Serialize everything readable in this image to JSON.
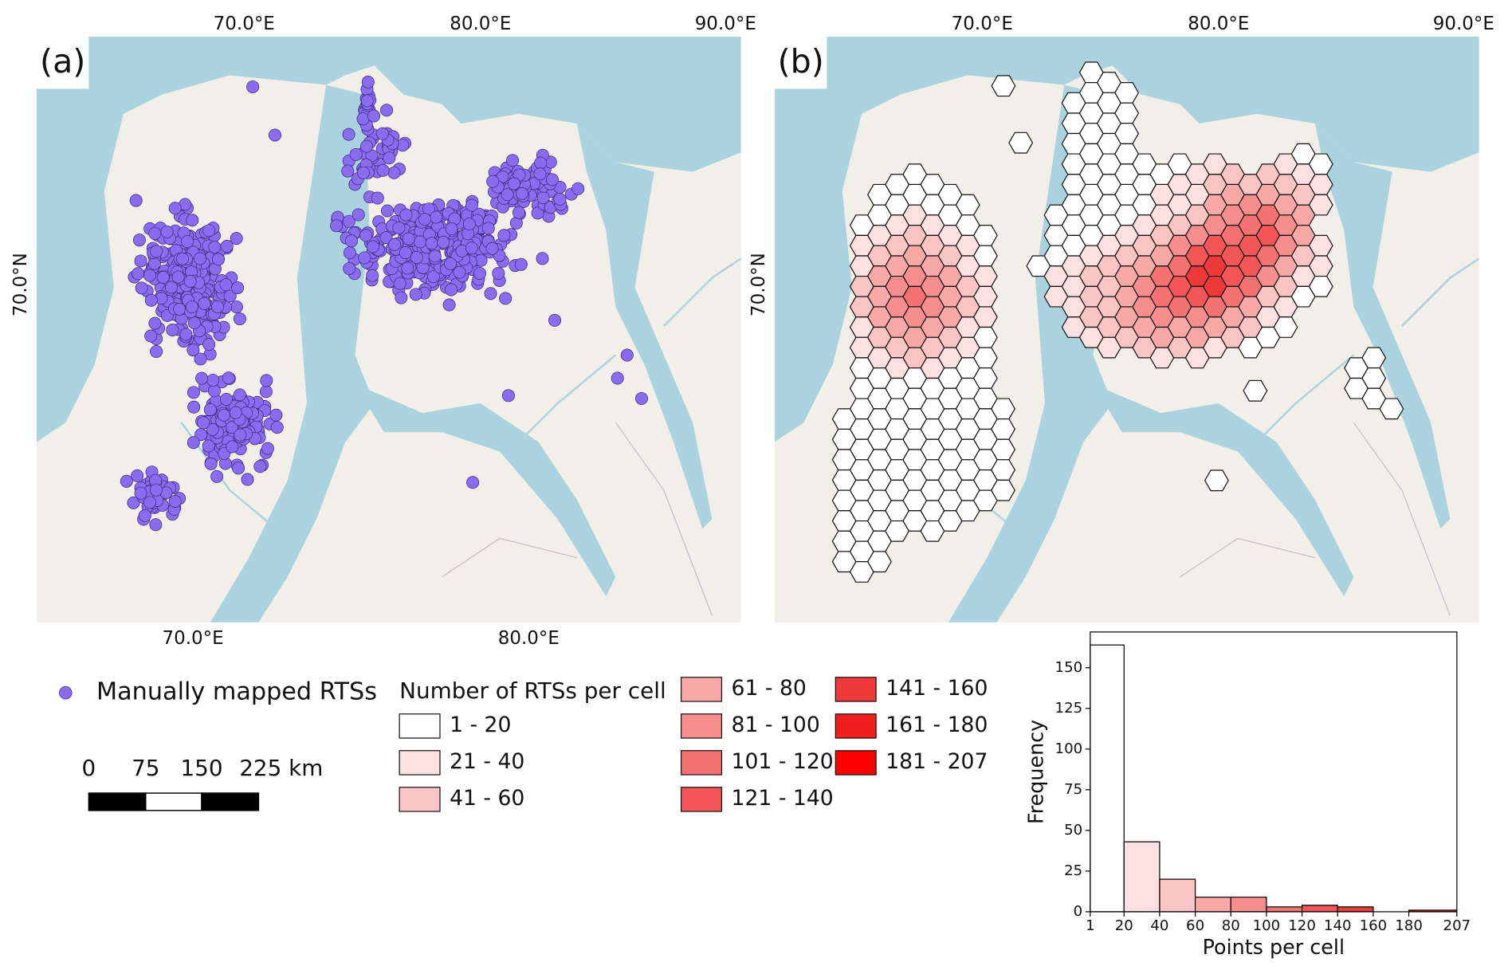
{
  "panels": [
    {
      "label": "(a)",
      "top_ticks": [
        "70.0°E",
        "80.0°E",
        "90.0°E"
      ],
      "left_tick": "70.0°N",
      "bottom_ticks": [
        "70.0°E",
        "80.0°E"
      ]
    },
    {
      "label": "(b)",
      "top_ticks": [
        "70.0°E",
        "80.0°E",
        "90.0°E"
      ],
      "left_tick": "70.0°N"
    }
  ],
  "legend_points": {
    "label": "Manually mapped RTSs",
    "color": "#8b6cf0"
  },
  "scale_bar": {
    "labels": [
      "0",
      "75",
      "150",
      "225 km"
    ]
  },
  "legend_hex": {
    "title": "Number of RTSs per cell",
    "classes": [
      {
        "label": "1 - 20",
        "color": "#ffffff"
      },
      {
        "label": "21 - 40",
        "color": "#fde0e0"
      },
      {
        "label": "41 - 60",
        "color": "#fbc4c4"
      },
      {
        "label": "61 - 80",
        "color": "#f9a8a8"
      },
      {
        "label": "81 - 100",
        "color": "#f78e8e"
      },
      {
        "label": "101 - 120",
        "color": "#f57272"
      },
      {
        "label": "121 - 140",
        "color": "#f25656"
      },
      {
        "label": "141 - 160",
        "color": "#f03a3a"
      },
      {
        "label": "161 - 180",
        "color": "#f01f1f"
      },
      {
        "label": "181 - 207",
        "color": "#ff0000"
      }
    ]
  },
  "chart_data": {
    "type": "histogram",
    "xlabel": "Points per cell",
    "ylabel": "Frequency",
    "bins": [
      1,
      20,
      40,
      60,
      80,
      100,
      120,
      140,
      160,
      180,
      207
    ],
    "values": [
      164,
      43,
      20,
      9,
      9,
      3,
      4,
      3,
      0,
      1
    ],
    "xlim": [
      1,
      207
    ],
    "ylim": [
      0,
      172
    ],
    "xticks": [
      1,
      20,
      40,
      60,
      80,
      100,
      120,
      140,
      160,
      180,
      207
    ],
    "yticks": [
      0,
      25,
      50,
      75,
      100,
      125,
      150
    ]
  }
}
